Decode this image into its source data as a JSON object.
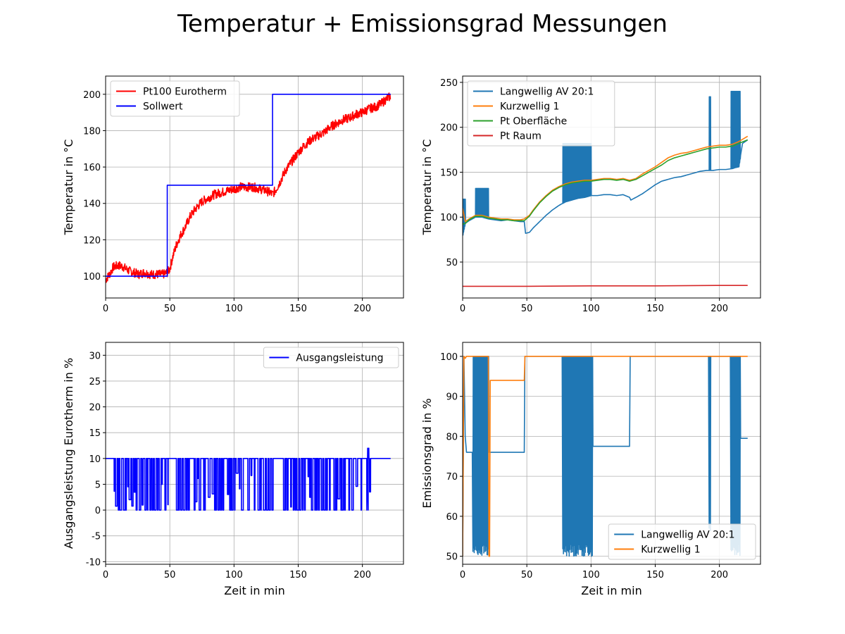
{
  "figure": {
    "suptitle": "Temperatur + Emissionsgrad Messungen"
  },
  "chart_data": [
    {
      "type": "line",
      "xlim": [
        0,
        232
      ],
      "ylim": [
        88,
        210
      ],
      "xticks": [
        0,
        50,
        100,
        150,
        200
      ],
      "yticks": [
        100,
        120,
        140,
        160,
        180,
        200
      ],
      "xlabel": "",
      "ylabel": "Temperatur in °C",
      "grid": true,
      "legend": "upper-left",
      "series": [
        {
          "name": "Pt100 Eurotherm",
          "color": "#ff0000",
          "x": [
            0,
            3,
            6,
            10,
            14,
            18,
            22,
            26,
            30,
            35,
            40,
            45,
            48,
            50,
            52,
            55,
            58,
            62,
            66,
            70,
            75,
            80,
            85,
            90,
            95,
            100,
            105,
            110,
            115,
            120,
            125,
            128,
            130,
            133,
            136,
            140,
            145,
            150,
            155,
            160,
            165,
            170,
            175,
            180,
            185,
            190,
            195,
            200,
            205,
            210,
            215,
            218,
            222
          ],
          "y": [
            98,
            101,
            105,
            106,
            105,
            103,
            102,
            101,
            102,
            101,
            101,
            101,
            102,
            104,
            110,
            117,
            122,
            127,
            133,
            137,
            141,
            143,
            145,
            146,
            147,
            148,
            149,
            149,
            149,
            148,
            147,
            146,
            145,
            148,
            152,
            158,
            163,
            168,
            172,
            175,
            177,
            179,
            182,
            184,
            186,
            187,
            189,
            190,
            192,
            193,
            195,
            197,
            199
          ],
          "noise": 2.5
        },
        {
          "name": "Sollwert",
          "color": "#0000ff",
          "x": [
            0,
            48,
            48,
            130,
            130,
            222
          ],
          "y": [
            100,
            100,
            150,
            150,
            200,
            200
          ]
        }
      ]
    },
    {
      "type": "line",
      "xlim": [
        0,
        232
      ],
      "ylim": [
        10,
        257
      ],
      "xticks": [
        0,
        50,
        100,
        150,
        200
      ],
      "yticks": [
        50,
        100,
        150,
        200,
        250
      ],
      "xlabel": "",
      "ylabel": "Temperatur in °C",
      "grid": true,
      "legend": "upper-left",
      "series": [
        {
          "name": "Langwellig AV 20:1",
          "color": "#1f77b4",
          "x": [
            0,
            2,
            5,
            10,
            15,
            20,
            25,
            30,
            35,
            40,
            45,
            48,
            49,
            52,
            55,
            60,
            65,
            70,
            75,
            80,
            85,
            90,
            95,
            100,
            105,
            110,
            115,
            120,
            125,
            130,
            131,
            135,
            140,
            145,
            150,
            155,
            160,
            165,
            170,
            175,
            180,
            185,
            190,
            195,
            200,
            205,
            210,
            212,
            215,
            218,
            222
          ],
          "y": [
            80,
            93,
            96,
            100,
            100,
            98,
            97,
            96,
            97,
            96,
            95,
            95,
            82,
            83,
            88,
            95,
            102,
            108,
            113,
            117,
            119,
            121,
            122,
            124,
            124,
            125,
            125,
            124,
            125,
            122,
            119,
            122,
            126,
            131,
            136,
            140,
            142,
            144,
            145,
            147,
            149,
            151,
            152,
            152,
            153,
            153,
            154,
            155,
            156,
            182,
            186
          ],
          "spikes": [
            [
              0,
              2,
              120
            ],
            [
              10,
              20,
              132
            ],
            [
              78,
              100,
              182
            ],
            [
              192,
              193,
              234
            ],
            [
              209,
              216,
              240
            ]
          ]
        },
        {
          "name": "Kurzwellig 1",
          "color": "#ff7f0e",
          "x": [
            0,
            2,
            5,
            10,
            15,
            20,
            25,
            30,
            35,
            40,
            45,
            48,
            52,
            55,
            60,
            65,
            70,
            75,
            80,
            85,
            90,
            95,
            100,
            105,
            110,
            115,
            120,
            125,
            130,
            135,
            140,
            145,
            150,
            155,
            160,
            165,
            170,
            175,
            180,
            185,
            190,
            195,
            200,
            205,
            210,
            215,
            222
          ],
          "y": [
            110,
            95,
            98,
            102,
            102,
            100,
            99,
            98,
            98,
            97,
            97,
            98,
            102,
            108,
            117,
            124,
            130,
            134,
            137,
            139,
            140,
            141,
            141,
            142,
            143,
            143,
            142,
            143,
            141,
            143,
            148,
            152,
            156,
            161,
            166,
            169,
            171,
            172,
            174,
            176,
            178,
            179,
            180,
            180,
            181,
            184,
            190
          ]
        },
        {
          "name": "Pt Oberfläche",
          "color": "#2ca02c",
          "x": [
            0,
            2,
            5,
            10,
            15,
            20,
            25,
            30,
            35,
            40,
            45,
            48,
            52,
            55,
            60,
            65,
            70,
            75,
            80,
            85,
            90,
            95,
            100,
            105,
            110,
            115,
            120,
            125,
            130,
            135,
            140,
            145,
            150,
            155,
            160,
            165,
            170,
            175,
            180,
            185,
            190,
            195,
            200,
            205,
            210,
            215,
            222
          ],
          "y": [
            92,
            93,
            97,
            101,
            101,
            99,
            98,
            97,
            97,
            96,
            96,
            96,
            101,
            107,
            116,
            123,
            129,
            133,
            136,
            138,
            139,
            140,
            140,
            141,
            142,
            142,
            141,
            142,
            140,
            142,
            146,
            150,
            154,
            158,
            163,
            166,
            168,
            170,
            172,
            174,
            176,
            177,
            178,
            178,
            179,
            182,
            186
          ]
        },
        {
          "name": "Pt Raum",
          "color": "#d62728",
          "x": [
            0,
            50,
            100,
            150,
            200,
            222
          ],
          "y": [
            23,
            23,
            23.5,
            23.5,
            24,
            24
          ]
        }
      ]
    },
    {
      "type": "line",
      "xlim": [
        0,
        232
      ],
      "ylim": [
        -10.5,
        32.5
      ],
      "xticks": [
        0,
        50,
        100,
        150,
        200
      ],
      "yticks": [
        -10,
        -5,
        0,
        5,
        10,
        15,
        20,
        25,
        30
      ],
      "xlabel": "Zeit in min",
      "ylabel": "Ausgangsleistung Eurotherm in %",
      "grid": true,
      "legend": "upper-right",
      "series": [
        {
          "name": "Ausgangsleistung",
          "color": "#0000ff",
          "base": 10,
          "x": [
            0,
            222
          ],
          "y": [
            10,
            10
          ],
          "dropout_ranges": [
            [
              6,
              49
            ],
            [
              55,
              130
            ],
            [
              138,
              206
            ]
          ],
          "bump": [
            204,
            205,
            12
          ]
        }
      ]
    },
    {
      "type": "line",
      "xlim": [
        0,
        232
      ],
      "ylim": [
        48,
        103.5
      ],
      "xticks": [
        0,
        50,
        100,
        150,
        200
      ],
      "yticks": [
        50,
        60,
        70,
        80,
        90,
        100
      ],
      "xlabel": "Zeit in min",
      "ylabel": "Emissionsgrad in %",
      "grid": true,
      "legend": "lower-right",
      "series": [
        {
          "name": "Langwellig AV 20:1",
          "color": "#1f77b4",
          "x": [
            0,
            1,
            2,
            3,
            20,
            48,
            48.5,
            78,
            100,
            101,
            130,
            130.5,
            192,
            209,
            216,
            222
          ],
          "y": [
            50,
            100,
            80,
            76,
            76,
            76,
            100,
            100,
            100,
            77.5,
            77.5,
            100,
            100,
            100,
            79.5,
            79.5
          ],
          "osc": [
            [
              8,
              20,
              50,
              100
            ],
            [
              78,
              101,
              50,
              100
            ],
            [
              192,
              193,
              56,
              100
            ],
            [
              209,
              216,
              50,
              100
            ]
          ]
        },
        {
          "name": "Kurzwellig 1",
          "color": "#ff7f0e",
          "x": [
            0,
            1,
            2,
            3,
            20,
            20.5,
            21,
            21.5,
            48,
            48.5,
            222
          ],
          "y": [
            50,
            100,
            99.5,
            100,
            100,
            50,
            50,
            94,
            94,
            100,
            100
          ]
        }
      ]
    }
  ]
}
